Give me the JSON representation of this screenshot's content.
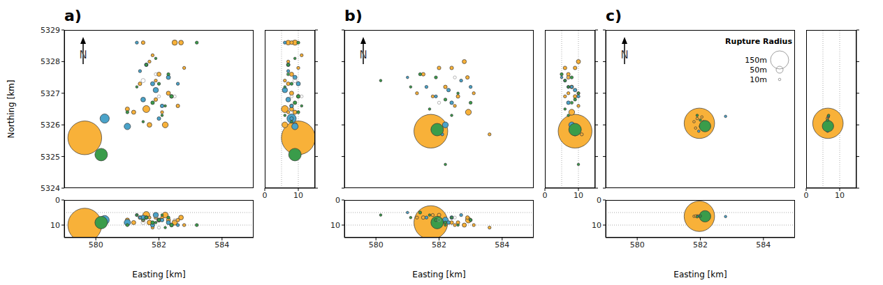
{
  "chart_data": [
    {
      "type": "scatter",
      "title": "a)",
      "xlabel": "Easting [km]",
      "ylabel": "Northing [km]",
      "north_label": "N",
      "xlim": [
        579,
        585
      ],
      "xticks": [
        580,
        582,
        584
      ],
      "ylim": [
        5324,
        5329
      ],
      "yticks": [
        5324,
        5325,
        5326,
        5327,
        5328,
        5329
      ],
      "depth_lim": [
        0,
        15
      ],
      "depth_ticks": [
        0,
        10
      ],
      "depth_grid": [
        5,
        10
      ],
      "series": [
        {
          "color": "#f8b139",
          "marker": "circle",
          "easting": [
            579.65,
            581.0,
            581.4,
            581.6,
            581.7,
            581.9,
            582.0,
            582.2,
            582.3,
            582.5,
            582.7,
            582.8,
            581.8,
            581.5,
            582.1,
            581.2,
            582.6,
            581.9,
            582.4,
            581.7
          ],
          "northing": [
            5325.59,
            5326.5,
            5327.3,
            5326.5,
            5326.0,
            5326.8,
            5327.6,
            5326.0,
            5327.0,
            5328.6,
            5328.6,
            5327.8,
            5328.2,
            5328.6,
            5326.4,
            5326.4,
            5326.6,
            5327.4,
            5326.9,
            5328.0
          ],
          "depth": [
            10,
            8,
            7,
            6,
            9,
            7,
            8,
            6,
            8,
            9,
            7,
            10,
            11,
            8,
            7,
            9,
            8,
            6,
            10,
            7
          ],
          "radius": [
            290,
            25,
            20,
            50,
            30,
            20,
            25,
            40,
            25,
            35,
            30,
            15,
            15,
            20,
            15,
            25,
            20,
            15,
            20,
            15
          ]
        },
        {
          "color": "#4aa3c9",
          "marker": "circle",
          "easting": [
            580.28,
            581.0,
            581.5,
            581.9,
            582.0,
            582.3,
            581.6,
            582.6,
            581.3,
            582.1,
            581.8,
            581.4
          ],
          "northing": [
            5326.2,
            5325.95,
            5326.8,
            5327.1,
            5326.2,
            5327.5,
            5327.9,
            5327.3,
            5328.6,
            5326.6,
            5327.3,
            5327.7
          ],
          "depth": [
            8,
            9,
            7,
            6,
            8,
            9,
            7,
            10,
            6,
            8,
            10,
            7
          ],
          "radius": [
            70,
            45,
            30,
            35,
            20,
            25,
            20,
            15,
            15,
            20,
            25,
            15
          ]
        },
        {
          "color": "#3a9c4a",
          "marker": "circle",
          "easting": [
            580.17,
            581.0,
            581.3,
            581.6,
            581.8,
            582.0,
            582.1,
            582.4,
            583.2,
            581.5,
            582.3,
            581.9,
            582.2
          ],
          "northing": [
            5325.06,
            5326.4,
            5327.2,
            5327.9,
            5326.7,
            5327.3,
            5326.3,
            5326.9,
            5328.6,
            5326.1,
            5327.6,
            5328.1,
            5326.6
          ],
          "depth": [
            9,
            10,
            6,
            7,
            9,
            8,
            6,
            10,
            10,
            8,
            7,
            9,
            11
          ],
          "radius": [
            100,
            15,
            10,
            15,
            20,
            15,
            10,
            20,
            15,
            10,
            15,
            10,
            10
          ]
        },
        {
          "color": "#999999",
          "marker": "open",
          "easting": [
            581.5,
            582.0,
            581.9,
            582.5
          ],
          "northing": [
            5327.4,
            5326.9,
            5327.6,
            5326.9
          ],
          "depth": [
            9,
            11,
            7,
            8
          ],
          "radius": [
            25,
            15,
            15,
            15
          ]
        }
      ]
    },
    {
      "type": "scatter",
      "title": "b)",
      "xlabel": "Easting [km]",
      "north_label": "N",
      "xlim": [
        579,
        585
      ],
      "xticks": [
        580,
        582,
        584
      ],
      "ylim": [
        5324,
        5329
      ],
      "yticks": [
        5324,
        5325,
        5326,
        5327,
        5328,
        5329
      ],
      "depth_lim": [
        0,
        15
      ],
      "depth_ticks": [
        0,
        10
      ],
      "depth_grid": [
        5,
        10
      ],
      "series": [
        {
          "color": "#f8b139",
          "marker": "circle",
          "easting": [
            581.74,
            582.93,
            581.5,
            582.0,
            582.4,
            582.8,
            582.9,
            583.1,
            582.2,
            581.8,
            582.6,
            581.3,
            582.5,
            583.6
          ],
          "northing": [
            5325.8,
            5326.4,
            5327.6,
            5327.8,
            5327.8,
            5328.0,
            5327.5,
            5327.0,
            5327.2,
            5326.9,
            5326.9,
            5327.0,
            5326.6,
            5325.7
          ],
          "depth": [
            9,
            8,
            7,
            6,
            9,
            10,
            7,
            10,
            8,
            6,
            9,
            7,
            10,
            11
          ],
          "radius": [
            290,
            40,
            20,
            20,
            20,
            25,
            20,
            15,
            20,
            15,
            20,
            15,
            15,
            15
          ]
        },
        {
          "color": "#4aa3c9",
          "marker": "circle",
          "easting": [
            582.2,
            581.0,
            581.6,
            582.3,
            582.7,
            583.0,
            581.9,
            582.4,
            582.1
          ],
          "northing": [
            5326.0,
            5327.5,
            5327.2,
            5327.1,
            5327.4,
            5327.2,
            5326.9,
            5326.7,
            5325.7
          ],
          "depth": [
            8,
            5,
            7,
            9,
            6,
            8,
            10,
            7,
            9
          ],
          "radius": [
            40,
            10,
            15,
            20,
            15,
            15,
            15,
            20,
            15
          ]
        },
        {
          "color": "#3a9c4a",
          "marker": "circle",
          "easting": [
            581.94,
            580.15,
            581.1,
            581.4,
            581.9,
            582.2,
            582.6,
            583.0,
            582.4,
            581.7,
            582.2
          ],
          "northing": [
            5325.85,
            5327.4,
            5327.2,
            5327.6,
            5327.5,
            5326.8,
            5327.0,
            5326.7,
            5326.3,
            5326.5,
            5324.75
          ],
          "depth": [
            9,
            6,
            7,
            5,
            8,
            9,
            10,
            8,
            7,
            6,
            10
          ],
          "radius": [
            100,
            10,
            10,
            15,
            15,
            15,
            10,
            15,
            10,
            10,
            10
          ]
        },
        {
          "color": "#999999",
          "marker": "open",
          "easting": [
            582.5,
            582.0
          ],
          "northing": [
            5327.5,
            5326.7
          ],
          "depth": [
            7,
            8
          ],
          "radius": [
            15,
            15
          ]
        }
      ]
    },
    {
      "type": "scatter",
      "title": "c)",
      "xlabel": "Easting [km]",
      "north_label": "N",
      "xlim": [
        579,
        585
      ],
      "xticks": [
        580,
        582,
        584
      ],
      "ylim": [
        5324,
        5329
      ],
      "yticks": [
        5324,
        5325,
        5326,
        5327,
        5328,
        5329
      ],
      "depth_lim": [
        0,
        15
      ],
      "depth_ticks": [
        0,
        10
      ],
      "depth_grid": [
        5,
        10
      ],
      "size_legend": {
        "title": "Rupture Radius",
        "sizes": [
          {
            "value": 150,
            "label": "150m"
          },
          {
            "value": 50,
            "label": "50m"
          },
          {
            "value": 10,
            "label": "10m"
          }
        ]
      },
      "series": [
        {
          "color": "#f8b139",
          "marker": "circle",
          "easting": [
            581.97,
            581.8,
            581.9,
            582.0,
            582.1,
            581.85,
            582.05
          ],
          "northing": [
            5326.05,
            5326.1,
            5326.2,
            5325.95,
            5326.0,
            5325.9,
            5326.25
          ],
          "depth": [
            6.5,
            6.5,
            6.3,
            6.6,
            6.5,
            6.4,
            6.6
          ],
          "radius": [
            260,
            10,
            10,
            10,
            10,
            10,
            10
          ]
        },
        {
          "color": "#4aa3c9",
          "marker": "circle",
          "easting": [
            582.8,
            581.95,
            582.1
          ],
          "northing": [
            5326.27,
            5325.8,
            5326.1
          ],
          "depth": [
            6.6,
            6.4,
            6.5
          ],
          "radius": [
            10,
            10,
            10
          ]
        },
        {
          "color": "#3a9c4a",
          "marker": "circle",
          "easting": [
            582.15,
            581.9,
            582.0
          ],
          "northing": [
            5325.96,
            5326.3,
            5326.15
          ],
          "depth": [
            6.5,
            6.7,
            6.4
          ],
          "radius": [
            90,
            10,
            10
          ]
        }
      ]
    }
  ]
}
